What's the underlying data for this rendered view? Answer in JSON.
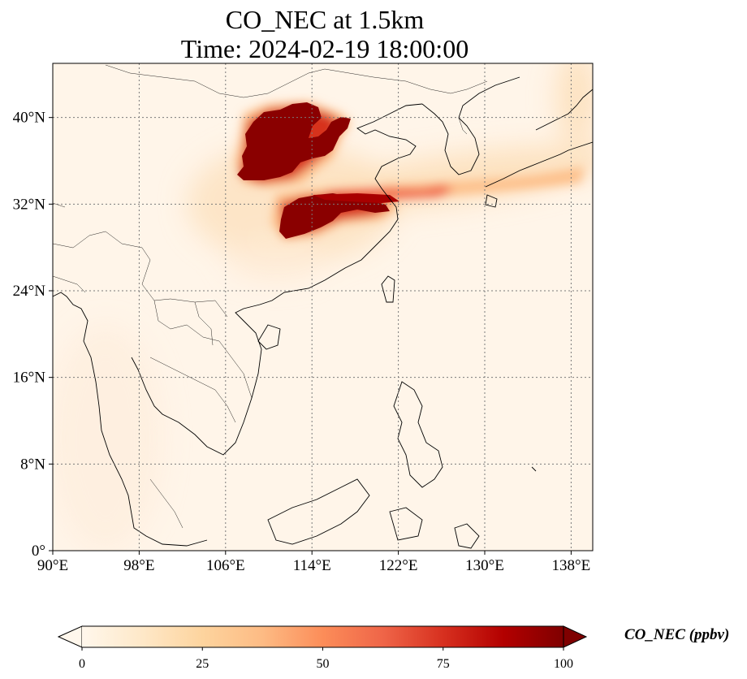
{
  "title_line1": "CO_NEC at 1.5km",
  "title_line2": "Time: 2024-02-19 18:00:00",
  "map": {
    "lon_range": [
      90,
      140
    ],
    "lat_range": [
      0,
      45
    ],
    "lon_ticks": [
      {
        "value": 90,
        "label": "90°E"
      },
      {
        "value": 98,
        "label": "98°E"
      },
      {
        "value": 106,
        "label": "106°E"
      },
      {
        "value": 114,
        "label": "114°E"
      },
      {
        "value": 122,
        "label": "122°E"
      },
      {
        "value": 130,
        "label": "130°E"
      },
      {
        "value": 138,
        "label": "138°E"
      }
    ],
    "lat_ticks": [
      {
        "value": 0,
        "label": "0°"
      },
      {
        "value": 8,
        "label": "8°N"
      },
      {
        "value": 16,
        "label": "16°N"
      },
      {
        "value": 24,
        "label": "24°N"
      },
      {
        "value": 32,
        "label": "32°N"
      },
      {
        "value": 40,
        "label": "40°N"
      }
    ],
    "gridlines": true,
    "colormap": "OrRd"
  },
  "colorbar": {
    "min": 0,
    "max": 100,
    "extend": "both",
    "ticks": [
      {
        "value": 0,
        "label": "0"
      },
      {
        "value": 25,
        "label": "25"
      },
      {
        "value": 50,
        "label": "50"
      },
      {
        "value": 75,
        "label": "75"
      },
      {
        "value": 100,
        "label": "100"
      }
    ],
    "label": "CO_NEC (ppbv)"
  }
}
